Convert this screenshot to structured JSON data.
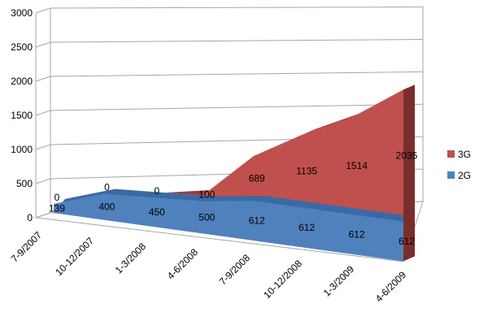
{
  "chart_data": {
    "type": "area",
    "stacked": true,
    "three_d": true,
    "categories": [
      "7-9/2007",
      "10-12/2007",
      "1-3/2008",
      "4-6/2008",
      "7-9/2008",
      "10-12/2008",
      "1-3/2009",
      "4-6/2009"
    ],
    "series": [
      {
        "name": "2G",
        "values": [
          139,
          400,
          450,
          500,
          612,
          612,
          612,
          612
        ],
        "labels": [
          "139",
          "400",
          "450",
          "500",
          "612",
          "612",
          "612",
          "612"
        ],
        "color": "#4F81BD"
      },
      {
        "name": "3G",
        "values": [
          0,
          0,
          0,
          100,
          689,
          1135,
          1514,
          2035
        ],
        "labels": [
          "0",
          "0",
          "0",
          "100",
          "689",
          "1135",
          "1514",
          "2035"
        ],
        "color": "#C0504D"
      }
    ],
    "yticks": [
      "0",
      "500",
      "1000",
      "1500",
      "2000",
      "2500",
      "3000"
    ],
    "ylim": [
      0,
      3000
    ],
    "grid": true,
    "legend_position": "right",
    "title": "",
    "xlabel": "",
    "ylabel": ""
  }
}
